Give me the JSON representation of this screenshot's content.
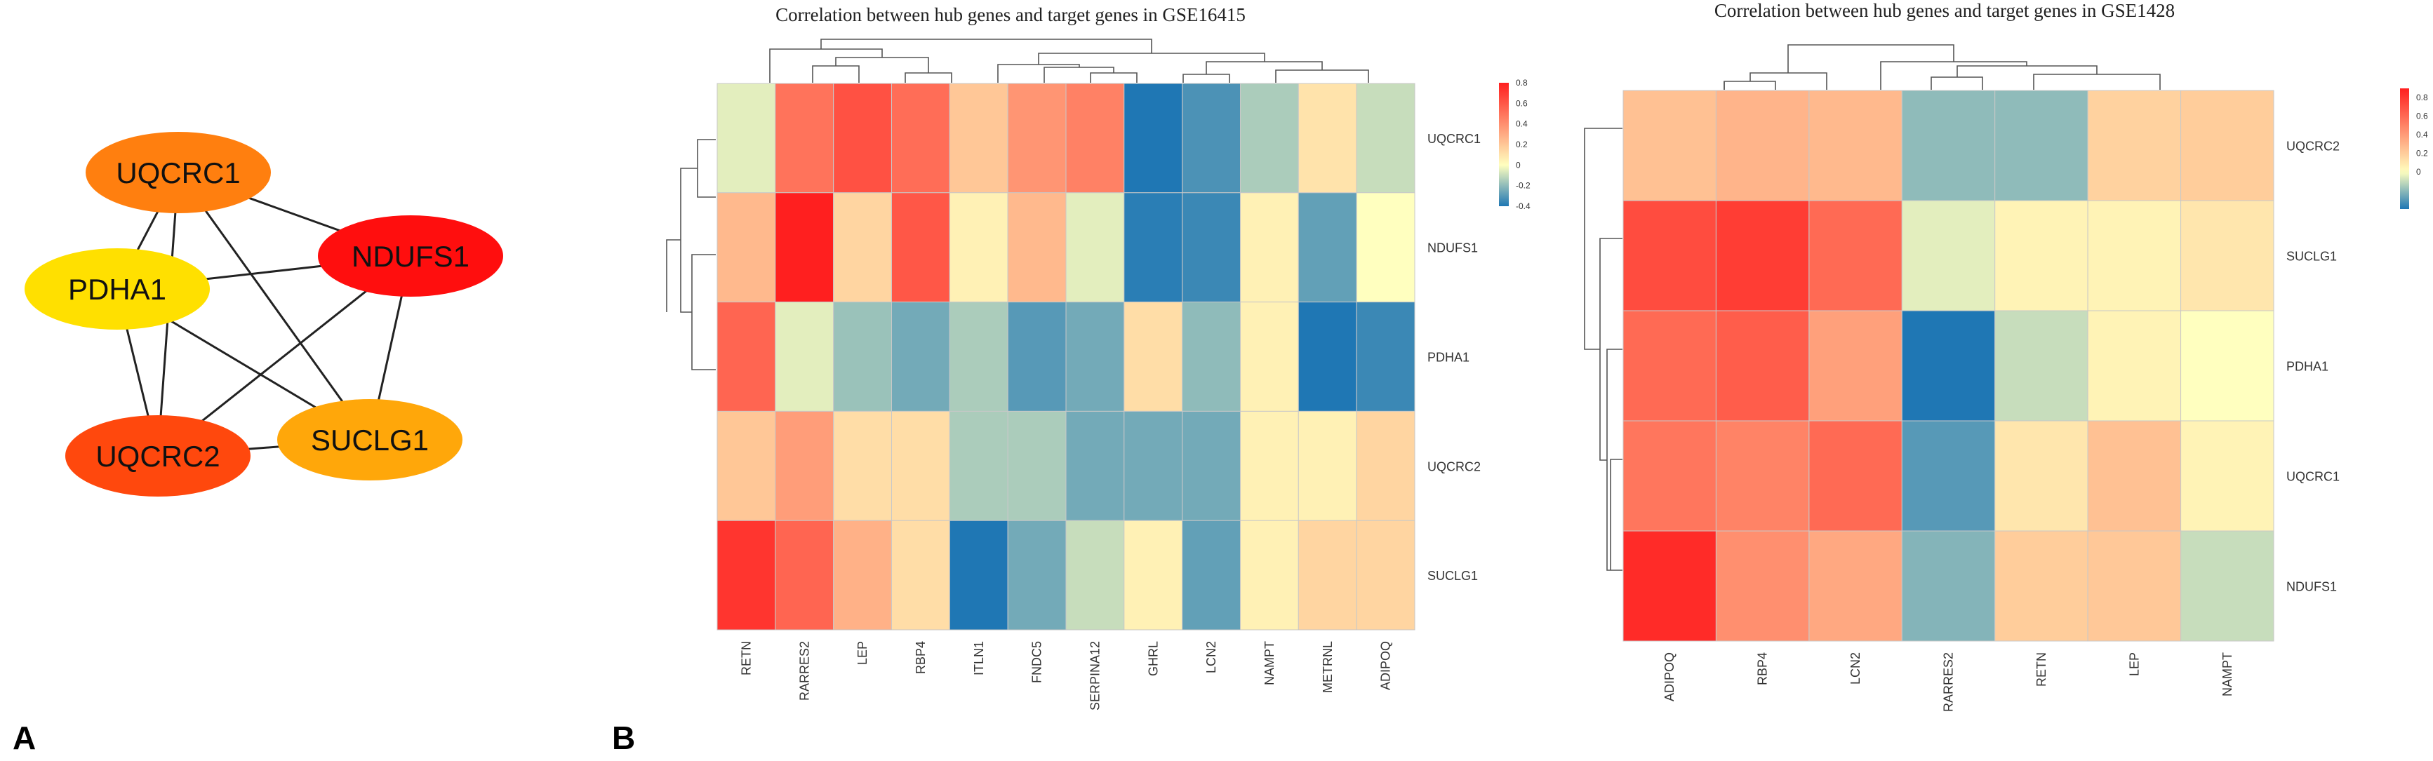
{
  "panel_labels": {
    "a": "A",
    "b": "B"
  },
  "network": {
    "nodes": [
      {
        "id": "UQCRC1",
        "label": "UQCRC1",
        "color": "#FF7F0F"
      },
      {
        "id": "NDUFS1",
        "label": "NDUFS1",
        "color": "#FF0E0E"
      },
      {
        "id": "PDHA1",
        "label": "PDHA1",
        "color": "#FFE000"
      },
      {
        "id": "UQCRC2",
        "label": "UQCRC2",
        "color": "#FF480D"
      },
      {
        "id": "SUCLG1",
        "label": "SUCLG1",
        "color": "#FFA70A"
      }
    ],
    "edges": [
      [
        "UQCRC1",
        "PDHA1"
      ],
      [
        "UQCRC1",
        "NDUFS1"
      ],
      [
        "UQCRC1",
        "UQCRC2"
      ],
      [
        "UQCRC1",
        "SUCLG1"
      ],
      [
        "PDHA1",
        "NDUFS1"
      ],
      [
        "PDHA1",
        "UQCRC2"
      ],
      [
        "PDHA1",
        "SUCLG1"
      ],
      [
        "NDUFS1",
        "UQCRC2"
      ],
      [
        "NDUFS1",
        "SUCLG1"
      ],
      [
        "UQCRC2",
        "SUCLG1"
      ]
    ]
  },
  "chart_data": [
    {
      "type": "heatmap",
      "title": "Correlation between hub genes and target genes in GSE16415",
      "columns": [
        "RETN",
        "RARRES2",
        "LEP",
        "RBP4",
        "ITLN1",
        "FNDC5",
        "SERPINA12",
        "GHRL",
        "LCN2",
        "NAMPT",
        "METRNL",
        "ADIPOQ"
      ],
      "rows": [
        "UQCRC1",
        "NDUFS1",
        "PDHA1",
        "UQCRC2",
        "SUCLG1"
      ],
      "values": [
        [
          -0.05,
          0.5,
          0.62,
          0.52,
          0.2,
          0.38,
          0.45,
          -0.42,
          -0.32,
          -0.15,
          0.1,
          -0.1
        ],
        [
          0.25,
          0.85,
          0.15,
          0.6,
          0.05,
          0.25,
          -0.05,
          -0.38,
          -0.35,
          0.05,
          -0.28,
          0.0
        ],
        [
          0.55,
          -0.05,
          -0.18,
          -0.25,
          -0.15,
          -0.3,
          -0.25,
          0.12,
          -0.2,
          0.05,
          -0.4,
          -0.35
        ],
        [
          0.2,
          0.35,
          0.12,
          0.12,
          -0.15,
          -0.15,
          -0.25,
          -0.25,
          -0.25,
          0.05,
          0.05,
          0.15
        ],
        [
          0.72,
          0.55,
          0.28,
          0.12,
          -0.4,
          -0.25,
          -0.1,
          0.05,
          -0.28,
          0.05,
          0.15,
          0.15
        ]
      ],
      "scale": {
        "min": -0.4,
        "max": 0.8,
        "ticks": [
          "0.8",
          "0.6",
          "0.4",
          "0.2",
          "0",
          "-0.2",
          "-0.4"
        ]
      },
      "colors": {
        "low": "#1F77B4",
        "mid": "#FFFFBF",
        "high": "#FF1F1F"
      }
    },
    {
      "type": "heatmap",
      "title": "Correlation between hub genes and target genes in GSE1428",
      "columns": [
        "ADIPOQ",
        "RBP4",
        "LCN2",
        "RARRES2",
        "RETN",
        "LEP",
        "NAMPT"
      ],
      "rows": [
        "UQCRC2",
        "SUCLG1",
        "PDHA1",
        "UQCRC1",
        "NDUFS1"
      ],
      "values": [
        [
          0.25,
          0.3,
          0.28,
          -0.2,
          -0.2,
          0.18,
          0.2
        ],
        [
          0.72,
          0.78,
          0.6,
          -0.05,
          0.05,
          0.05,
          0.1
        ],
        [
          0.6,
          0.65,
          0.38,
          -0.4,
          -0.1,
          0.05,
          0.0
        ],
        [
          0.55,
          0.5,
          0.6,
          -0.3,
          0.1,
          0.25,
          0.05
        ],
        [
          0.85,
          0.45,
          0.35,
          -0.22,
          0.2,
          0.22,
          -0.1
        ]
      ],
      "scale": {
        "min": -0.4,
        "max": 0.9,
        "ticks": [
          "0.8",
          "0.6",
          "0.4",
          "0.2",
          "0"
        ]
      },
      "colors": {
        "low": "#1F77B4",
        "mid": "#FFFFBF",
        "high": "#FF1F1F"
      }
    }
  ]
}
